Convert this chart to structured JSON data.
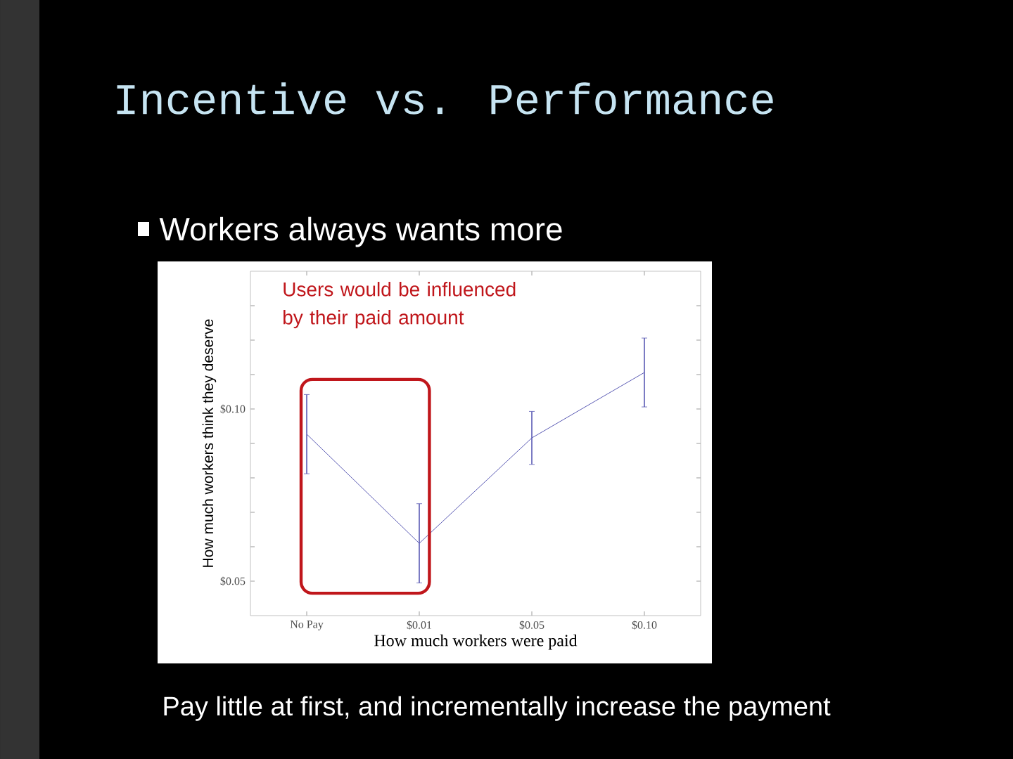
{
  "chart_data": {
    "type": "line",
    "title": "Incentive vs. Performance",
    "subtitle": "Workers always wants more",
    "xlabel": "How much workers were paid",
    "ylabel": "How much workers think they deserve",
    "annotations": [
      "Users would be influenced by their paid amount",
      "Pay little at first, and incrementally increase the payment"
    ],
    "categories": [
      "No Pay",
      "$0.01",
      "$0.05",
      "$0.10"
    ],
    "values": [
      0.0927,
      0.061,
      0.0916,
      0.1106
    ],
    "errors": [
      0.0115,
      0.0115,
      0.0077,
      0.01
    ],
    "color": "#5a5ab4",
    "ylim": [
      0.04,
      0.14
    ],
    "yticks": [
      {
        "value": 0.05,
        "label": "$0.05"
      },
      {
        "value": 0.06,
        "label": null
      },
      {
        "value": 0.07,
        "label": null
      },
      {
        "value": 0.08,
        "label": null
      },
      {
        "value": 0.09,
        "label": null
      },
      {
        "value": 0.1,
        "label": "$0.10"
      },
      {
        "value": 0.11,
        "label": null
      },
      {
        "value": 0.12,
        "label": null
      },
      {
        "value": 0.13,
        "label": null
      }
    ]
  }
}
